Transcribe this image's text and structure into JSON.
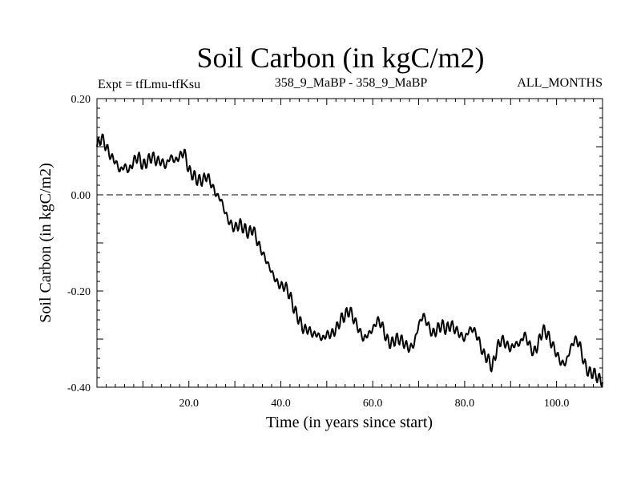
{
  "chart_data": {
    "type": "line",
    "title": "Soil Carbon (in kgC/m2)",
    "subtitle_left": "Expt = tfLmu-tfKsu",
    "subtitle_center": "358_9_MaBP - 358_9_MaBP",
    "subtitle_right": "ALL_MONTHS",
    "xlabel": "Time (in years since start)",
    "ylabel": "Soil Carbon (in kgC/m2)",
    "xlim": [
      0,
      110
    ],
    "ylim": [
      -0.4,
      0.2
    ],
    "x_ticks": [
      20,
      40,
      60,
      80,
      100
    ],
    "x_tick_labels": [
      "20.0",
      "40.0",
      "60.0",
      "80.0",
      "100.0"
    ],
    "y_ticks": [
      0.2,
      0.0,
      -0.2,
      -0.4
    ],
    "y_tick_labels": [
      "0.20",
      "0.00",
      "-0.20",
      "-0.40"
    ],
    "reference_line": {
      "y": 0.0,
      "style": "dashed"
    },
    "series": [
      {
        "name": "Soil Carbon",
        "x": [
          0,
          1,
          2,
          3,
          4,
          5,
          6,
          7,
          8,
          9,
          10,
          11,
          12,
          13,
          14,
          15,
          16,
          17,
          18,
          19,
          20,
          21,
          22,
          23,
          24,
          25,
          26,
          27,
          28,
          29,
          30,
          31,
          32,
          33,
          34,
          35,
          36,
          37,
          38,
          39,
          40,
          41,
          42,
          43,
          44,
          45,
          46,
          47,
          48,
          49,
          50,
          51,
          52,
          53,
          54,
          55,
          56,
          57,
          58,
          59,
          60,
          61,
          62,
          63,
          64,
          65,
          66,
          67,
          68,
          69,
          70,
          71,
          72,
          73,
          74,
          75,
          76,
          77,
          78,
          79,
          80,
          81,
          82,
          83,
          84,
          85,
          86,
          87,
          88,
          89,
          90,
          91,
          92,
          93,
          94,
          95,
          96,
          97,
          98,
          99,
          100,
          101,
          102,
          103,
          104,
          105,
          106,
          107,
          108,
          109,
          110
        ],
        "values": [
          0.1,
          0.12,
          0.1,
          0.08,
          0.07,
          0.05,
          0.06,
          0.05,
          0.07,
          0.08,
          0.06,
          0.07,
          0.08,
          0.07,
          0.07,
          0.06,
          0.08,
          0.07,
          0.08,
          0.09,
          0.05,
          0.04,
          0.03,
          0.03,
          0.04,
          0.02,
          0.0,
          -0.01,
          -0.04,
          -0.06,
          -0.07,
          -0.06,
          -0.07,
          -0.08,
          -0.07,
          -0.1,
          -0.12,
          -0.14,
          -0.16,
          -0.18,
          -0.19,
          -0.19,
          -0.21,
          -0.24,
          -0.26,
          -0.28,
          -0.28,
          -0.29,
          -0.29,
          -0.3,
          -0.29,
          -0.29,
          -0.28,
          -0.26,
          -0.25,
          -0.24,
          -0.26,
          -0.28,
          -0.3,
          -0.29,
          -0.28,
          -0.26,
          -0.27,
          -0.3,
          -0.31,
          -0.3,
          -0.3,
          -0.31,
          -0.32,
          -0.31,
          -0.27,
          -0.25,
          -0.27,
          -0.29,
          -0.28,
          -0.27,
          -0.28,
          -0.27,
          -0.28,
          -0.29,
          -0.3,
          -0.28,
          -0.28,
          -0.3,
          -0.33,
          -0.34,
          -0.36,
          -0.32,
          -0.3,
          -0.31,
          -0.32,
          -0.31,
          -0.31,
          -0.29,
          -0.31,
          -0.33,
          -0.31,
          -0.28,
          -0.29,
          -0.31,
          -0.33,
          -0.35,
          -0.35,
          -0.32,
          -0.3,
          -0.31,
          -0.35,
          -0.37,
          -0.37,
          -0.38,
          -0.39
        ]
      }
    ]
  }
}
